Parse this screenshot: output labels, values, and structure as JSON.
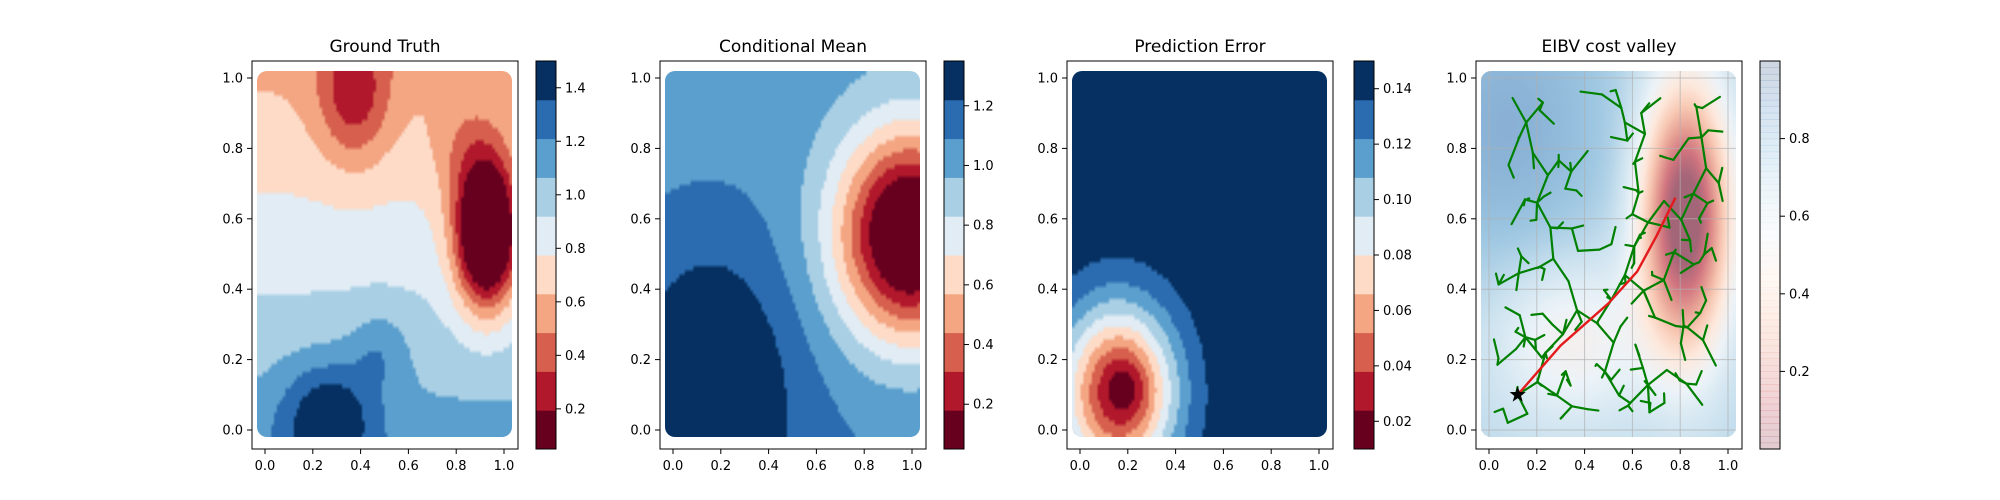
{
  "chart_data": [
    {
      "type": "heatmap",
      "title": "Ground Truth",
      "xlabel": "",
      "ylabel": "",
      "xlim": [
        0.0,
        1.0
      ],
      "ylim": [
        0.0,
        1.0
      ],
      "xticks": [
        "0.0",
        "0.2",
        "0.4",
        "0.6",
        "0.8",
        "1.0"
      ],
      "yticks": [
        "0.0",
        "0.2",
        "0.4",
        "0.6",
        "0.8",
        "1.0"
      ],
      "colormap": "RdBu",
      "colorbar": {
        "range": [
          0.05,
          1.5
        ],
        "ticks": [
          "0.2",
          "0.4",
          "0.6",
          "0.8",
          "1.0",
          "1.2",
          "1.4"
        ]
      },
      "colors": {
        "dark_red": "#67001f",
        "light": "#f7f7f7",
        "dark_blue": "#053061"
      }
    },
    {
      "type": "heatmap",
      "title": "Conditional Mean",
      "xlabel": "",
      "ylabel": "",
      "xlim": [
        0.0,
        1.0
      ],
      "ylim": [
        0.0,
        1.0
      ],
      "xticks": [
        "0.0",
        "0.2",
        "0.4",
        "0.6",
        "0.8",
        "1.0"
      ],
      "yticks": [
        "0.0",
        "0.2",
        "0.4",
        "0.6",
        "0.8",
        "1.0"
      ],
      "colormap": "RdBu",
      "colorbar": {
        "range": [
          0.05,
          1.35
        ],
        "ticks": [
          "0.2",
          "0.4",
          "0.6",
          "0.8",
          "1.0",
          "1.2"
        ]
      }
    },
    {
      "type": "heatmap",
      "title": "Prediction Error",
      "xlabel": "",
      "ylabel": "",
      "xlim": [
        0.0,
        1.0
      ],
      "ylim": [
        0.0,
        1.0
      ],
      "xticks": [
        "0.0",
        "0.2",
        "0.4",
        "0.6",
        "0.8",
        "1.0"
      ],
      "yticks": [
        "0.0",
        "0.2",
        "0.4",
        "0.6",
        "0.8",
        "1.0"
      ],
      "colormap": "RdBu",
      "colorbar": {
        "range": [
          0.01,
          0.15
        ],
        "ticks": [
          "0.02",
          "0.04",
          "0.06",
          "0.08",
          "0.10",
          "0.12",
          "0.14"
        ]
      }
    },
    {
      "type": "heatmap",
      "title": "EIBV cost valley",
      "xlabel": "",
      "ylabel": "",
      "xlim": [
        0.0,
        1.0
      ],
      "ylim": [
        0.0,
        1.0
      ],
      "xticks": [
        "0.0",
        "0.2",
        "0.4",
        "0.6",
        "0.8",
        "1.0"
      ],
      "yticks": [
        "0.0",
        "0.2",
        "0.4",
        "0.6",
        "0.8",
        "1.0"
      ],
      "colormap": "RdBu (transparent)",
      "grid": true,
      "colorbar": {
        "range": [
          0.0,
          1.0
        ],
        "ticks": [
          "0.2",
          "0.4",
          "0.6",
          "0.8"
        ]
      },
      "start_point": {
        "x": 0.12,
        "y": 0.1,
        "marker": "star"
      },
      "tree_color": "#008000",
      "path_color": "#e41a1c",
      "selected_path": {
        "x": [
          0.12,
          0.3,
          0.5,
          0.62,
          0.7,
          0.78
        ],
        "y": [
          0.1,
          0.24,
          0.36,
          0.45,
          0.55,
          0.66
        ]
      }
    }
  ]
}
